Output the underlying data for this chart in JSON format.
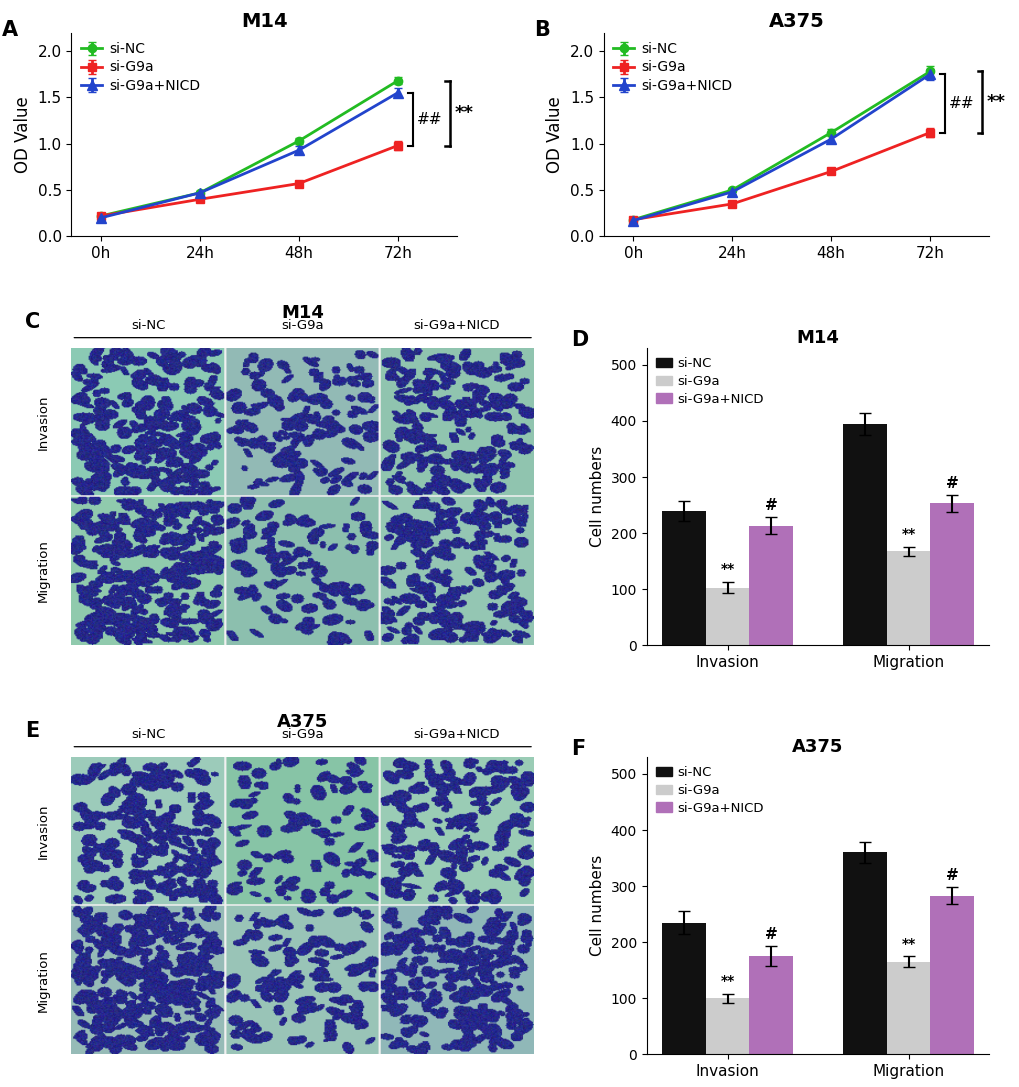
{
  "panel_A": {
    "title": "M14",
    "xlabel_ticks": [
      "0h",
      "24h",
      "48h",
      "72h"
    ],
    "ylabel": "OD Value",
    "ylim": [
      0.0,
      2.2
    ],
    "yticks": [
      0.0,
      0.5,
      1.0,
      1.5,
      2.0
    ],
    "siNC": [
      0.22,
      0.47,
      1.03,
      1.68
    ],
    "siNC_err": [
      0.01,
      0.02,
      0.03,
      0.04
    ],
    "siG9a": [
      0.22,
      0.4,
      0.57,
      0.98
    ],
    "siG9a_err": [
      0.01,
      0.02,
      0.03,
      0.05
    ],
    "siG9aNICD": [
      0.2,
      0.47,
      0.93,
      1.55
    ],
    "siG9aNICD_err": [
      0.01,
      0.02,
      0.04,
      0.05
    ],
    "ann_hash": "##",
    "ann_star": "**"
  },
  "panel_B": {
    "title": "A375",
    "xlabel_ticks": [
      "0h",
      "24h",
      "48h",
      "72h"
    ],
    "ylabel": "OD Value",
    "ylim": [
      0.0,
      2.2
    ],
    "yticks": [
      0.0,
      0.5,
      1.0,
      1.5,
      2.0
    ],
    "siNC": [
      0.18,
      0.5,
      1.12,
      1.78
    ],
    "siNC_err": [
      0.01,
      0.02,
      0.04,
      0.06
    ],
    "siG9a": [
      0.18,
      0.35,
      0.7,
      1.12
    ],
    "siG9a_err": [
      0.01,
      0.02,
      0.03,
      0.05
    ],
    "siG9aNICD": [
      0.17,
      0.48,
      1.05,
      1.75
    ],
    "siG9aNICD_err": [
      0.01,
      0.02,
      0.04,
      0.06
    ],
    "ann_hash": "##",
    "ann_star": "**"
  },
  "panel_D": {
    "title": "M14",
    "categories": [
      "Invasion",
      "Migration"
    ],
    "siNC": [
      240,
      395
    ],
    "siNC_err": [
      18,
      20
    ],
    "siG9a": [
      103,
      168
    ],
    "siG9a_err": [
      10,
      8
    ],
    "siG9aNICD": [
      213,
      253
    ],
    "siG9aNICD_err": [
      15,
      15
    ],
    "ylim": [
      0,
      530
    ],
    "yticks": [
      0,
      100,
      200,
      300,
      400,
      500
    ],
    "ylabel": "Cell numbers",
    "color_siNC": "#111111",
    "color_siG9a": "#cccccc",
    "color_siG9aNICD": "#b070b8"
  },
  "panel_F": {
    "title": "A375",
    "categories": [
      "Invasion",
      "Migration"
    ],
    "siNC": [
      235,
      360
    ],
    "siNC_err": [
      20,
      18
    ],
    "siG9a": [
      100,
      165
    ],
    "siG9a_err": [
      8,
      10
    ],
    "siG9aNICD": [
      175,
      283
    ],
    "siG9aNICD_err": [
      18,
      15
    ],
    "ylim": [
      0,
      530
    ],
    "yticks": [
      0,
      100,
      200,
      300,
      400,
      500
    ],
    "ylabel": "Cell numbers",
    "color_siNC": "#111111",
    "color_siG9a": "#cccccc",
    "color_siG9aNICD": "#b070b8"
  },
  "line_colors": {
    "siNC": "#22bb22",
    "siG9a": "#ee2222",
    "siG9aNICD": "#2244cc"
  },
  "legend_labels": [
    "si-NC",
    "si-G9a",
    "si-G9a+NICD"
  ],
  "figure_bg": "#ffffff"
}
